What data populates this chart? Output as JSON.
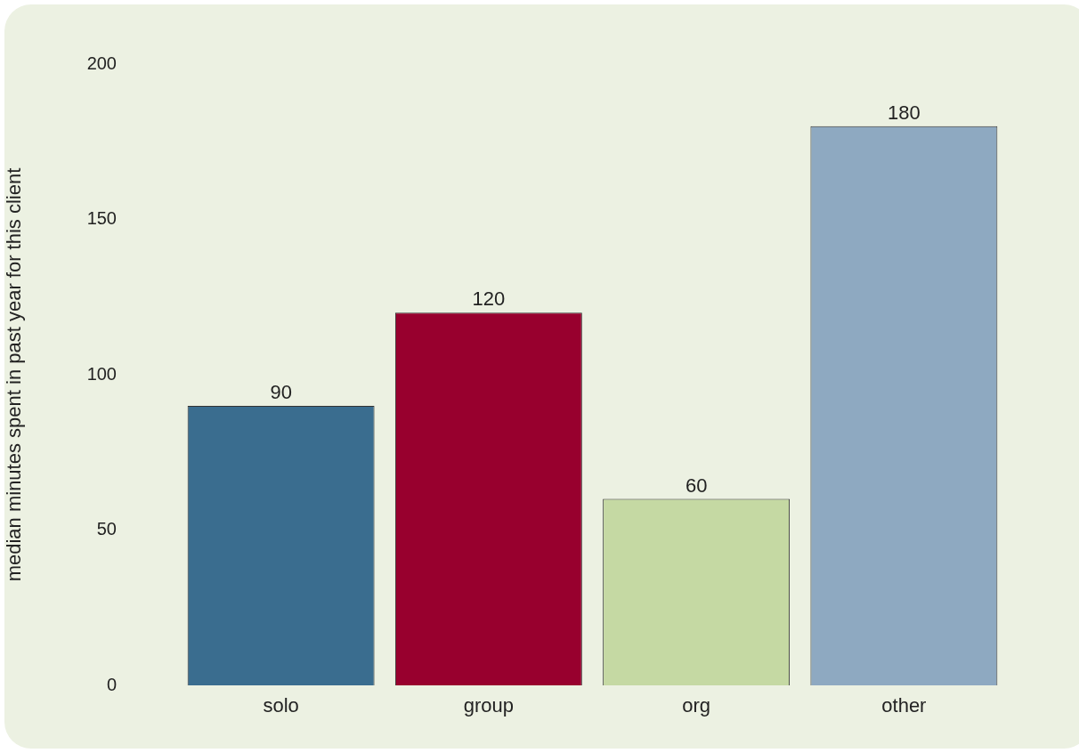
{
  "chart_data": {
    "type": "bar",
    "ylabel": "median minutes spent in past year for this client",
    "categories": [
      "solo",
      "group",
      "org",
      "other"
    ],
    "values": [
      90,
      120,
      60,
      180
    ],
    "colors": [
      "#3a6d8f",
      "#98002e",
      "#c5d9a3",
      "#8ea9c1"
    ],
    "ylim": [
      0,
      200
    ],
    "yticks": [
      0,
      50,
      100,
      150,
      200
    ],
    "grid": false,
    "legend": false,
    "data_labels": true
  }
}
